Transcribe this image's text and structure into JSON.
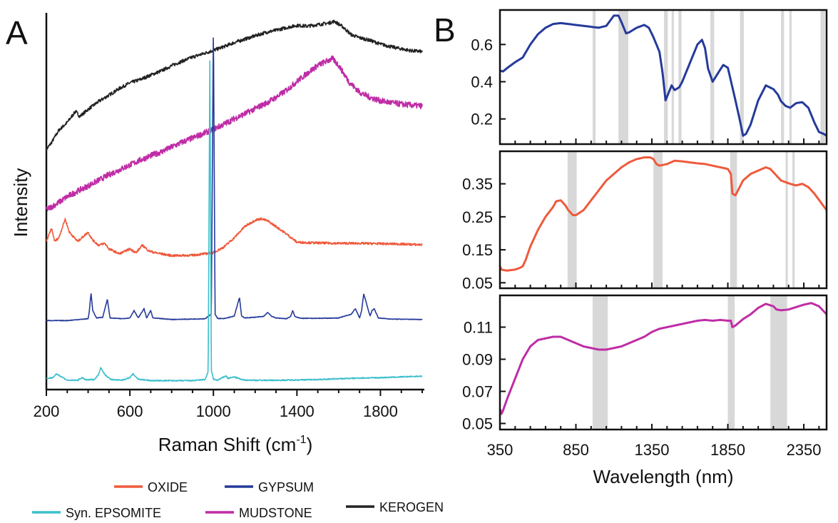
{
  "colors": {
    "oxide": "#ef5a3c",
    "gypsum": "#253a9a",
    "epsomite": "#3cbfcc",
    "mudstone": "#bf2ca6",
    "kerogen": "#222222",
    "band": "#d8d8d8"
  },
  "legend": {
    "row1": [
      "OXIDE",
      "GYPSUM"
    ],
    "row2": [
      "Syn. EPSOMITE",
      "MUDSTONE",
      "KEROGEN"
    ]
  },
  "chart_data": [
    {
      "panel": "A",
      "type": "line",
      "title": "",
      "xlabel": "Raman Shift (cm",
      "xlabel_sup": "-1",
      "xlabel_close": ")",
      "ylabel": "Intensity",
      "xlim": [
        200,
        2000
      ],
      "xticks": [
        200,
        600,
        1000,
        1400,
        1800
      ],
      "ylim": [
        0,
        100
      ],
      "y_ticks_labeled": false,
      "series": [
        {
          "name": "KEROGEN",
          "key": "kerogen",
          "x": [
            200,
            220,
            260,
            300,
            340,
            360,
            400,
            450,
            500,
            550,
            600,
            650,
            700,
            750,
            800,
            850,
            900,
            950,
            1000,
            1050,
            1100,
            1150,
            1200,
            1250,
            1300,
            1350,
            1400,
            1450,
            1500,
            1550,
            1580,
            1620,
            1660,
            1700,
            1750,
            1800,
            1850,
            1900,
            1950,
            2000
          ],
          "y": [
            64.2,
            65.6,
            69.3,
            71.4,
            74.4,
            73.0,
            74.9,
            77.0,
            78.7,
            80.5,
            82.0,
            82.9,
            84.1,
            85.2,
            86.6,
            87.8,
            88.9,
            89.8,
            90.7,
            91.7,
            92.8,
            93.7,
            94.6,
            95.5,
            96.1,
            96.8,
            97.4,
            97.2,
            97.6,
            98.0,
            98.5,
            97.0,
            94.9,
            94.1,
            93.4,
            92.4,
            91.7,
            91.1,
            90.6,
            90.4
          ],
          "noise": 0.45
        },
        {
          "name": "MUDSTONE",
          "key": "mudstone",
          "x": [
            200,
            250,
            300,
            350,
            400,
            450,
            500,
            550,
            600,
            650,
            700,
            750,
            800,
            850,
            900,
            950,
            1000,
            1050,
            1100,
            1150,
            1200,
            1250,
            1300,
            1350,
            1400,
            1450,
            1500,
            1550,
            1570,
            1600,
            1650,
            1700,
            1750,
            1800,
            1850,
            1900,
            1950,
            2000
          ],
          "y": [
            48.0,
            49.6,
            51.5,
            53.0,
            54.4,
            55.9,
            57.4,
            58.7,
            60.0,
            61.3,
            62.5,
            63.5,
            64.8,
            66.1,
            67.2,
            68.4,
            69.6,
            70.9,
            72.4,
            73.7,
            75.1,
            76.5,
            78.1,
            80.0,
            82.4,
            84.6,
            86.7,
            88.0,
            88.5,
            86.7,
            82.2,
            79.5,
            78.1,
            77.2,
            76.7,
            76.3,
            76.0,
            75.8
          ],
          "noise": 0.8
        },
        {
          "name": "OXIDE",
          "key": "oxide",
          "x": [
            200,
            225,
            240,
            260,
            290,
            310,
            350,
            400,
            420,
            450,
            480,
            500,
            550,
            600,
            630,
            660,
            690,
            720,
            800,
            900,
            1000,
            1050,
            1100,
            1150,
            1200,
            1230,
            1260,
            1300,
            1350,
            1400,
            1500,
            1600,
            1700,
            1800,
            1900,
            2000
          ],
          "y": [
            39.5,
            43.0,
            39.5,
            40.5,
            45.5,
            42.0,
            39.5,
            42.0,
            40.0,
            38.5,
            39.0,
            37.5,
            36.2,
            37.5,
            36.5,
            38.5,
            37.0,
            36.5,
            35.7,
            35.8,
            36.5,
            38.0,
            40.5,
            43.5,
            45.2,
            45.6,
            45.0,
            43.5,
            41.5,
            39.3,
            39.1,
            39.0,
            39.0,
            38.9,
            38.8,
            38.6
          ],
          "noise": 0.3
        },
        {
          "name": "GYPSUM",
          "key": "gypsum",
          "x": [
            200,
            300,
            400,
            405,
            414,
            422,
            440,
            470,
            492,
            505,
            560,
            600,
            620,
            640,
            668,
            680,
            700,
            710,
            800,
            900,
            960,
            990,
            1000,
            1008,
            1020,
            1050,
            1100,
            1125,
            1135,
            1150,
            1200,
            1240,
            1260,
            1280,
            1300,
            1350,
            1370,
            1380,
            1390,
            1420,
            1500,
            1600,
            1660,
            1680,
            1700,
            1710,
            1720,
            1750,
            1760,
            1770,
            1790,
            1850,
            2000
          ],
          "y": [
            18.3,
            18.3,
            18.8,
            20.5,
            25.7,
            21.0,
            19.0,
            19.2,
            24.0,
            19.0,
            18.8,
            19.0,
            21.0,
            19.0,
            21.5,
            19.0,
            21.0,
            19.0,
            18.6,
            18.7,
            18.8,
            20.0,
            98.0,
            20.0,
            18.9,
            18.8,
            19.5,
            24.5,
            19.5,
            19.0,
            19.2,
            19.4,
            20.5,
            19.4,
            19.0,
            18.8,
            19.4,
            21.0,
            19.4,
            18.9,
            18.9,
            19.0,
            20.0,
            21.5,
            19.0,
            21.0,
            25.5,
            19.5,
            21.0,
            21.5,
            19.0,
            18.7,
            18.6
          ],
          "noise": 0.08
        },
        {
          "name": "Syn. EPSOMITE",
          "key": "epsomite",
          "x": [
            200,
            230,
            250,
            280,
            300,
            350,
            370,
            390,
            430,
            450,
            460,
            480,
            510,
            560,
            600,
            615,
            640,
            700,
            800,
            900,
            960,
            975,
            983,
            990,
            1000,
            1020,
            1060,
            1070,
            1100,
            1140,
            1200,
            1300,
            1400,
            1500,
            1600,
            1700,
            1800,
            1900,
            2000
          ],
          "y": [
            2.8,
            3.0,
            4.0,
            3.0,
            2.3,
            2.3,
            3.0,
            2.4,
            2.5,
            3.8,
            5.8,
            3.8,
            2.5,
            2.3,
            3.0,
            4.0,
            2.6,
            2.2,
            2.2,
            2.2,
            2.5,
            4.5,
            88.0,
            5.0,
            2.6,
            2.3,
            3.5,
            2.8,
            3.2,
            2.4,
            2.3,
            2.3,
            2.4,
            2.5,
            2.7,
            2.9,
            3.0,
            3.2,
            3.4
          ],
          "noise": 0.15
        }
      ]
    },
    {
      "panel": "B",
      "type": "line",
      "title": "",
      "xlabel": "Wavelength (nm)",
      "ylabel": "",
      "xlim": [
        350,
        2500
      ],
      "xticks": [
        350,
        850,
        1350,
        1850,
        2350
      ],
      "subplots": [
        {
          "key": "gypsum",
          "ylim": [
            0.08,
            0.77
          ],
          "yticks": [
            0.2,
            0.4,
            0.6
          ],
          "ytick_labels": [
            "0.2",
            "0.4",
            "0.6"
          ],
          "bands": [
            [
              960,
              980
            ],
            [
              1130,
              1195
            ],
            [
              1430,
              1455
            ],
            [
              1480,
              1495
            ],
            [
              1525,
              1545
            ],
            [
              1735,
              1760
            ],
            [
              1930,
              1955
            ],
            [
              2200,
              2220
            ],
            [
              2255,
              2270
            ],
            [
              2460,
              2490
            ]
          ],
          "x": [
            350,
            370,
            400,
            450,
            500,
            550,
            600,
            650,
            700,
            750,
            800,
            850,
            900,
            950,
            1000,
            1050,
            1100,
            1130,
            1150,
            1180,
            1200,
            1250,
            1300,
            1330,
            1360,
            1400,
            1420,
            1440,
            1460,
            1480,
            1500,
            1530,
            1550,
            1600,
            1650,
            1680,
            1700,
            1720,
            1750,
            1800,
            1820,
            1850,
            1900,
            1930,
            1950,
            1970,
            2000,
            2050,
            2100,
            2150,
            2180,
            2200,
            2230,
            2260,
            2300,
            2340,
            2380,
            2420,
            2450,
            2480,
            2500
          ],
          "y": [
            0.46,
            0.455,
            0.475,
            0.505,
            0.53,
            0.6,
            0.655,
            0.69,
            0.71,
            0.715,
            0.71,
            0.705,
            0.7,
            0.695,
            0.69,
            0.7,
            0.755,
            0.755,
            0.72,
            0.66,
            0.665,
            0.69,
            0.705,
            0.69,
            0.64,
            0.56,
            0.45,
            0.3,
            0.34,
            0.38,
            0.355,
            0.37,
            0.4,
            0.5,
            0.6,
            0.625,
            0.58,
            0.47,
            0.4,
            0.465,
            0.49,
            0.475,
            0.3,
            0.19,
            0.11,
            0.12,
            0.17,
            0.3,
            0.38,
            0.36,
            0.33,
            0.295,
            0.27,
            0.26,
            0.285,
            0.29,
            0.26,
            0.18,
            0.13,
            0.12,
            0.11
          ]
        },
        {
          "key": "oxide",
          "ylim": [
            0.042,
            0.44
          ],
          "yticks": [
            0.05,
            0.15,
            0.25,
            0.35
          ],
          "ytick_labels": [
            "0.05",
            "0.15",
            "0.25",
            "0.35"
          ],
          "bands": [
            [
              795,
              855
            ],
            [
              1360,
              1420
            ],
            [
              1865,
              1910
            ],
            [
              2230,
              2245
            ],
            [
              2275,
              2290
            ]
          ],
          "x": [
            350,
            360,
            380,
            400,
            450,
            480,
            500,
            520,
            550,
            600,
            650,
            700,
            720,
            750,
            780,
            800,
            830,
            850,
            900,
            950,
            1000,
            1050,
            1100,
            1150,
            1200,
            1250,
            1300,
            1340,
            1360,
            1380,
            1400,
            1450,
            1500,
            1550,
            1600,
            1650,
            1700,
            1750,
            1800,
            1850,
            1870,
            1880,
            1900,
            1950,
            2000,
            2050,
            2100,
            2130,
            2160,
            2200,
            2230,
            2260,
            2300,
            2340,
            2380,
            2420,
            2460,
            2500
          ],
          "y": [
            0.1,
            0.09,
            0.088,
            0.087,
            0.09,
            0.095,
            0.1,
            0.12,
            0.16,
            0.21,
            0.25,
            0.28,
            0.297,
            0.3,
            0.285,
            0.27,
            0.255,
            0.255,
            0.27,
            0.3,
            0.33,
            0.36,
            0.38,
            0.4,
            0.415,
            0.425,
            0.43,
            0.43,
            0.425,
            0.41,
            0.405,
            0.41,
            0.42,
            0.418,
            0.415,
            0.412,
            0.41,
            0.405,
            0.4,
            0.395,
            0.38,
            0.32,
            0.315,
            0.36,
            0.38,
            0.39,
            0.4,
            0.395,
            0.38,
            0.36,
            0.355,
            0.35,
            0.345,
            0.35,
            0.34,
            0.32,
            0.295,
            0.27
          ]
        },
        {
          "key": "mudstone",
          "ylim": [
            0.048,
            0.128
          ],
          "yticks": [
            0.05,
            0.07,
            0.09,
            0.11
          ],
          "ytick_labels": [
            "0.05",
            "0.07",
            "0.09",
            "0.11"
          ],
          "bands": [
            [
              960,
              1060
            ],
            [
              1850,
              1895
            ],
            [
              2130,
              2240
            ]
          ],
          "x": [
            350,
            360,
            370,
            400,
            450,
            500,
            550,
            600,
            650,
            700,
            750,
            800,
            850,
            900,
            950,
            1000,
            1050,
            1100,
            1150,
            1200,
            1250,
            1300,
            1350,
            1400,
            1450,
            1500,
            1550,
            1600,
            1650,
            1700,
            1750,
            1800,
            1850,
            1870,
            1880,
            1900,
            1950,
            2000,
            2050,
            2100,
            2150,
            2170,
            2200,
            2250,
            2300,
            2350,
            2400,
            2450,
            2480,
            2500
          ],
          "y": [
            0.059,
            0.056,
            0.058,
            0.066,
            0.078,
            0.09,
            0.098,
            0.102,
            0.103,
            0.104,
            0.104,
            0.102,
            0.1,
            0.098,
            0.097,
            0.096,
            0.096,
            0.097,
            0.098,
            0.1,
            0.102,
            0.104,
            0.107,
            0.109,
            0.11,
            0.111,
            0.112,
            0.113,
            0.114,
            0.1145,
            0.114,
            0.1145,
            0.114,
            0.114,
            0.11,
            0.111,
            0.115,
            0.118,
            0.122,
            0.1245,
            0.123,
            0.121,
            0.1205,
            0.121,
            0.1225,
            0.124,
            0.125,
            0.123,
            0.12,
            0.118
          ]
        }
      ]
    }
  ]
}
